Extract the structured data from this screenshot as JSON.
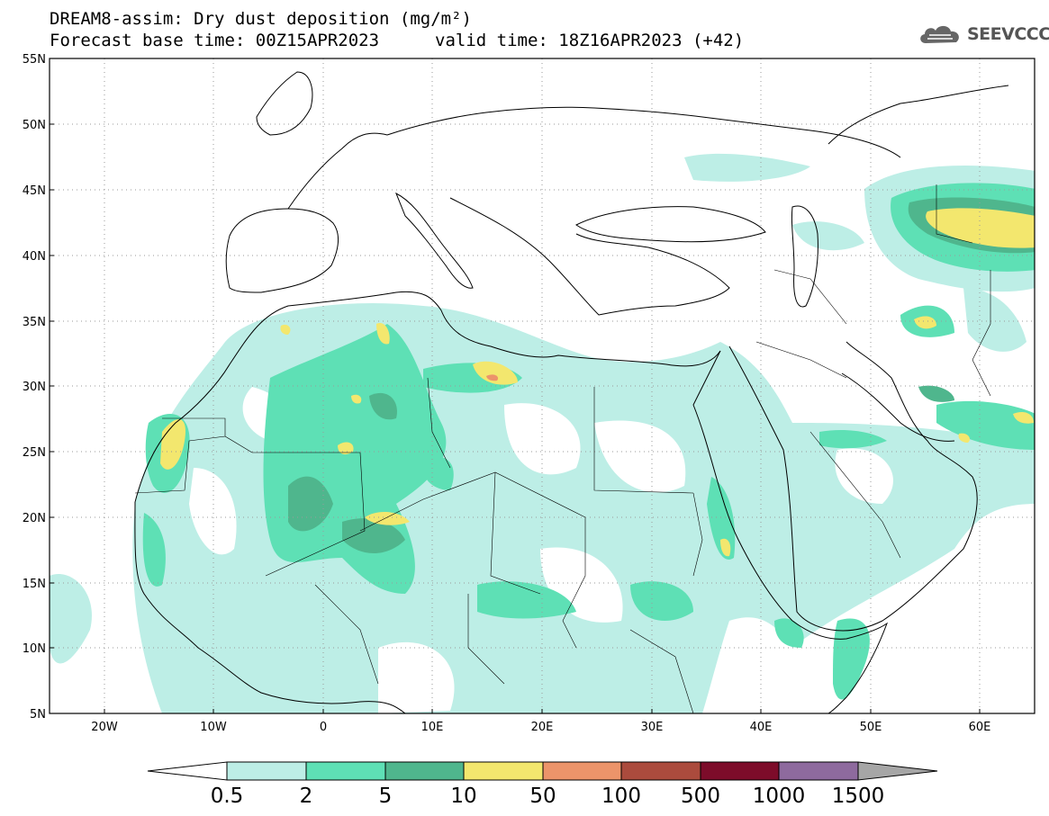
{
  "header": {
    "line1": "DREAM8-assim: Dry dust deposition (mg/m²)",
    "line2_left": "Forecast base time: 00Z15APR2023",
    "line2_right": "valid time: 18Z16APR2023 (+42)"
  },
  "logo": {
    "text": "SEEVCCC",
    "icon": "cloud-icon"
  },
  "axes": {
    "lat_labels": [
      "55N",
      "50N",
      "45N",
      "40N",
      "35N",
      "30N",
      "25N",
      "20N",
      "15N",
      "10N",
      "5N"
    ],
    "lon_labels": [
      "20W",
      "10W",
      "0",
      "10E",
      "20E",
      "30E",
      "40E",
      "50E",
      "60E"
    ],
    "lat_range": [
      5,
      55
    ],
    "lon_range": [
      -25,
      65
    ]
  },
  "legend": {
    "labels": [
      "0.5",
      "2",
      "5",
      "10",
      "50",
      "100",
      "500",
      "1000",
      "1500"
    ],
    "colors": [
      "#ffffff",
      "#bdeee6",
      "#5ee0b5",
      "#4fb68d",
      "#f3e76e",
      "#ec946a",
      "#ab4b3d",
      "#7d0c2a",
      "#8e6a9e",
      "#a6a6a6"
    ]
  },
  "map": {
    "projection": "cylindrical",
    "shading_colors": {
      "light": "#bdeee6",
      "mid": "#5ee0b5",
      "dark": "#4fb68d",
      "yellow": "#f3e76e",
      "orange": "#ec946a"
    }
  }
}
